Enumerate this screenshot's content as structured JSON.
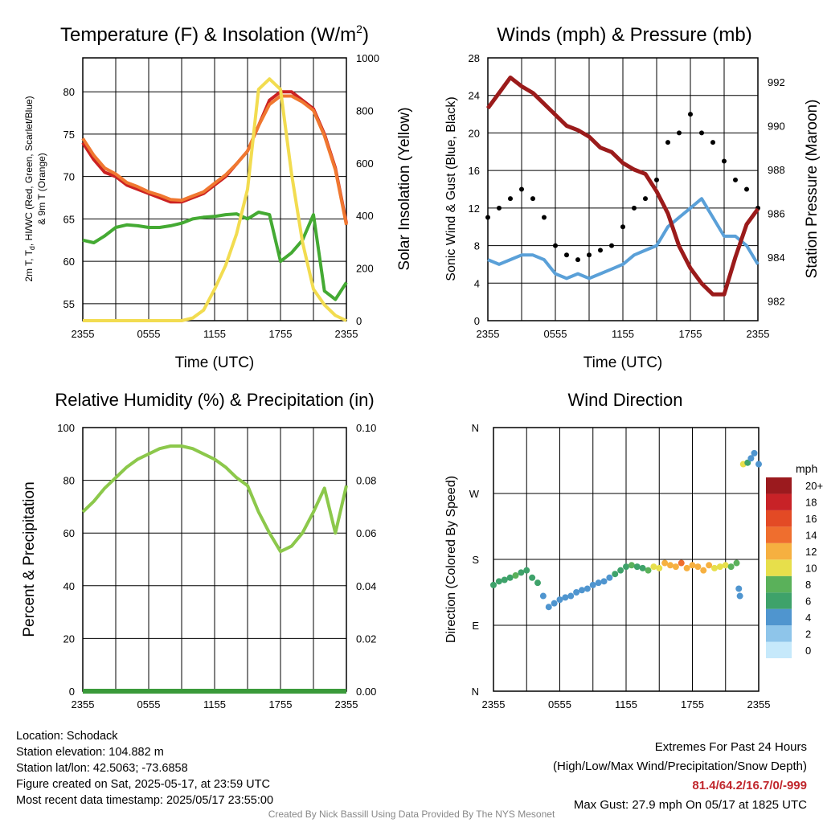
{
  "panels": {
    "temperature": {
      "title": "Temperature (F) & Insolation (W/m",
      "title_sup": "2",
      "title_end": ")",
      "ylabel_left_1": "2m T, T",
      "ylabel_left_sub": "d",
      "ylabel_left_2": ", HI/WC (Red, Green, Scarlet/Blue)",
      "ylabel_left_3": "& 9m T (Orange)",
      "ylabel_right": "Solar Insolation (Yellow)",
      "xlabel": "Time (UTC)"
    },
    "winds": {
      "title": "Winds (mph) & Pressure (mb)",
      "ylabel_left": "Sonic Wind & Gust (Blue, Black)",
      "ylabel_right": "Station Pressure (Maroon)",
      "xlabel": "Time (UTC)"
    },
    "humidity": {
      "title": "Relative Humidity (%) & Precipitation (in)",
      "ylabel_left": "Percent & Precipitation"
    },
    "direction": {
      "title": "Wind Direction",
      "ylabel_left": "Direction (Colored By Speed)",
      "colorbar_title": "mph"
    }
  },
  "info": {
    "location": "Location: Schodack",
    "elevation": "Station elevation: 104.882 m",
    "latlon": "Station lat/lon: 42.5063; -73.6858",
    "created": "Figure created on Sat, 2025-05-17, at 23:59 UTC",
    "recent": "Most recent data timestamp: 2025/05/17 23:55:00"
  },
  "extremes": {
    "title": "Extremes For Past 24 Hours",
    "subtitle": "(High/Low/Max Wind/Precipitation/Snow Depth)",
    "values": "81.4/64.2/16.7/0/-999",
    "gust": "Max Gust: 27.9 mph On 05/17 at 1825 UTC"
  },
  "credit": "Created By Nick Bassill Using Data Provided By The NYS Mesonet",
  "colors": {
    "temp": "#cc2222",
    "temp9m": "#f07830",
    "dewpoint": "#44aa33",
    "solar": "#f2dc50",
    "wind": "#5aa0d8",
    "gust": "#000000",
    "pressure": "#9b1b1b",
    "rh": "#8cc84b",
    "precip": "#3a9a3a"
  },
  "chart_data": [
    {
      "type": "line",
      "panel": "temperature",
      "x_ticks": [
        "2355",
        "0555",
        "1155",
        "1755",
        "2355"
      ],
      "ylim": [
        53,
        84
      ],
      "y_ticks": [
        55,
        60,
        65,
        70,
        75,
        80
      ],
      "y2lim": [
        0,
        1000
      ],
      "y2_ticks": [
        0,
        200,
        400,
        600,
        800,
        1000
      ],
      "x_hours": [
        0,
        1,
        2,
        3,
        4,
        5,
        6,
        7,
        8,
        9,
        10,
        11,
        12,
        13,
        14,
        15,
        16,
        17,
        18,
        19,
        20,
        21,
        22,
        23,
        24
      ],
      "series": [
        {
          "key": "temp",
          "axis": "left",
          "values": [
            74,
            72,
            70.5,
            70,
            69,
            68.5,
            68,
            67.5,
            67,
            67,
            67.5,
            68,
            69,
            70,
            71.5,
            73,
            76,
            79,
            80,
            80,
            79,
            78,
            75,
            71,
            64.5
          ]
        },
        {
          "key": "temp9m",
          "axis": "left",
          "values": [
            74.5,
            72.5,
            71,
            70.3,
            69.3,
            68.8,
            68.2,
            67.8,
            67.3,
            67.2,
            67.7,
            68.2,
            69.2,
            70.2,
            71.5,
            73,
            76,
            78.5,
            79.5,
            79.5,
            78.8,
            77.8,
            74.8,
            70.8,
            64.3
          ]
        },
        {
          "key": "dewpoint",
          "axis": "left",
          "values": [
            62.5,
            62.2,
            63,
            64,
            64.3,
            64.2,
            64,
            64,
            64.2,
            64.5,
            65,
            65.2,
            65.3,
            65.5,
            65.6,
            65,
            65.8,
            65.5,
            60,
            61,
            62.5,
            65.5,
            56.5,
            55.5,
            57.5
          ]
        },
        {
          "key": "solar",
          "axis": "right",
          "values": [
            0,
            0,
            0,
            0,
            0,
            0,
            0,
            0,
            0,
            0,
            10,
            40,
            120,
            210,
            330,
            500,
            880,
            920,
            880,
            560,
            300,
            120,
            60,
            20,
            0
          ]
        }
      ]
    },
    {
      "type": "line",
      "panel": "winds",
      "x_ticks": [
        "2355",
        "0555",
        "1155",
        "1755",
        "2355"
      ],
      "ylim": [
        0,
        28
      ],
      "y_ticks": [
        0,
        4,
        8,
        12,
        16,
        20,
        24,
        28
      ],
      "y2lim": [
        981.1,
        993.1
      ],
      "y2_ticks": [
        982,
        984,
        986,
        988,
        990,
        992
      ],
      "x_hours": [
        0,
        1,
        2,
        3,
        4,
        5,
        6,
        7,
        8,
        9,
        10,
        11,
        12,
        13,
        14,
        15,
        16,
        17,
        18,
        19,
        20,
        21,
        22,
        23,
        24
      ],
      "series": [
        {
          "key": "wind",
          "axis": "left",
          "values": [
            6.5,
            6,
            6.5,
            7,
            7,
            6.5,
            5,
            4.5,
            5,
            4.5,
            5,
            5.5,
            6,
            7,
            7.5,
            8,
            10,
            11,
            12,
            13,
            11,
            9,
            9,
            8,
            6
          ]
        },
        {
          "key": "gust",
          "axis": "left",
          "mark": "scatter",
          "values": [
            11,
            12,
            13,
            14,
            13,
            11,
            8,
            7,
            6.5,
            7,
            7.5,
            8,
            10,
            12,
            13,
            15,
            19,
            20,
            22,
            20,
            19,
            17,
            15,
            14,
            12
          ]
        },
        {
          "key": "pressure",
          "axis": "right",
          "values": [
            990.8,
            991.5,
            992.2,
            991.8,
            991.5,
            991,
            990.5,
            990,
            989.8,
            989.5,
            989,
            988.8,
            988.3,
            988,
            987.8,
            987,
            986,
            984.5,
            983.5,
            982.8,
            982.3,
            982.3,
            984,
            985.5,
            986.2
          ]
        }
      ]
    },
    {
      "type": "line",
      "panel": "humidity",
      "x_ticks": [
        "2355",
        "0555",
        "1155",
        "1755",
        "2355"
      ],
      "ylim": [
        0,
        100
      ],
      "y_ticks": [
        0,
        20,
        40,
        60,
        80,
        100
      ],
      "y2lim": [
        0,
        0.1
      ],
      "y2_ticks": [
        "0.00",
        "0.02",
        "0.04",
        "0.06",
        "0.08",
        "0.10"
      ],
      "x_hours": [
        0,
        1,
        2,
        3,
        4,
        5,
        6,
        7,
        8,
        9,
        10,
        11,
        12,
        13,
        14,
        15,
        16,
        17,
        18,
        19,
        20,
        21,
        22,
        23,
        24
      ],
      "series": [
        {
          "key": "rh",
          "axis": "left",
          "values": [
            68,
            72,
            77,
            81,
            85,
            88,
            90,
            92,
            93,
            93,
            92,
            90,
            88,
            85,
            81,
            78,
            68,
            60,
            53,
            55,
            60,
            68,
            77,
            60,
            78
          ]
        },
        {
          "key": "precip",
          "axis": "right",
          "values": [
            0,
            0,
            0,
            0,
            0,
            0,
            0,
            0,
            0,
            0,
            0,
            0,
            0,
            0,
            0,
            0,
            0,
            0,
            0,
            0,
            0,
            0,
            0,
            0,
            0
          ]
        }
      ]
    },
    {
      "type": "scatter",
      "panel": "direction",
      "x_ticks": [
        "2355",
        "0555",
        "1155",
        "1755",
        "2355"
      ],
      "y_ticks": [
        "N",
        "E",
        "S",
        "W",
        "N"
      ],
      "ylim": [
        0,
        360
      ],
      "colorbar_levels": [
        "0",
        "2",
        "4",
        "6",
        "8",
        "10",
        "12",
        "14",
        "16",
        "18",
        "20+"
      ],
      "colorbar_colors": [
        "#c6e9fb",
        "#8ec5ea",
        "#4f95cf",
        "#3ea26a",
        "#5ab15a",
        "#e7df4b",
        "#f6b040",
        "#ef6e2e",
        "#e34a25",
        "#c82227",
        "#9b1a1e"
      ],
      "points": [
        {
          "x": 0,
          "dir": 145,
          "speed": 7
        },
        {
          "x": 0.5,
          "dir": 150,
          "speed": 6
        },
        {
          "x": 1,
          "dir": 152,
          "speed": 7
        },
        {
          "x": 1.5,
          "dir": 155,
          "speed": 7
        },
        {
          "x": 2,
          "dir": 158,
          "speed": 8
        },
        {
          "x": 2.5,
          "dir": 162,
          "speed": 7
        },
        {
          "x": 3,
          "dir": 165,
          "speed": 7
        },
        {
          "x": 3.5,
          "dir": 155,
          "speed": 6
        },
        {
          "x": 4,
          "dir": 148,
          "speed": 6
        },
        {
          "x": 4.5,
          "dir": 130,
          "speed": 4
        },
        {
          "x": 5,
          "dir": 115,
          "speed": 4
        },
        {
          "x": 5.5,
          "dir": 120,
          "speed": 4
        },
        {
          "x": 6,
          "dir": 125,
          "speed": 4
        },
        {
          "x": 6.5,
          "dir": 128,
          "speed": 4
        },
        {
          "x": 7,
          "dir": 130,
          "speed": 4
        },
        {
          "x": 7.5,
          "dir": 135,
          "speed": 4
        },
        {
          "x": 8,
          "dir": 138,
          "speed": 4
        },
        {
          "x": 8.5,
          "dir": 140,
          "speed": 4
        },
        {
          "x": 9,
          "dir": 145,
          "speed": 4
        },
        {
          "x": 9.5,
          "dir": 148,
          "speed": 5
        },
        {
          "x": 10,
          "dir": 150,
          "speed": 5
        },
        {
          "x": 10.5,
          "dir": 155,
          "speed": 5
        },
        {
          "x": 11,
          "dir": 160,
          "speed": 6
        },
        {
          "x": 11.5,
          "dir": 165,
          "speed": 6
        },
        {
          "x": 12,
          "dir": 170,
          "speed": 7
        },
        {
          "x": 12.5,
          "dir": 172,
          "speed": 8
        },
        {
          "x": 13,
          "dir": 170,
          "speed": 7
        },
        {
          "x": 13.5,
          "dir": 168,
          "speed": 7
        },
        {
          "x": 14,
          "dir": 165,
          "speed": 9
        },
        {
          "x": 14.5,
          "dir": 170,
          "speed": 10
        },
        {
          "x": 15,
          "dir": 168,
          "speed": 11
        },
        {
          "x": 15.5,
          "dir": 175,
          "speed": 12
        },
        {
          "x": 16,
          "dir": 172,
          "speed": 13
        },
        {
          "x": 16.5,
          "dir": 170,
          "speed": 13
        },
        {
          "x": 17,
          "dir": 175,
          "speed": 14
        },
        {
          "x": 17.5,
          "dir": 168,
          "speed": 13
        },
        {
          "x": 18,
          "dir": 172,
          "speed": 12
        },
        {
          "x": 18.5,
          "dir": 170,
          "speed": 13
        },
        {
          "x": 19,
          "dir": 165,
          "speed": 12
        },
        {
          "x": 19.5,
          "dir": 172,
          "speed": 12
        },
        {
          "x": 20,
          "dir": 168,
          "speed": 11
        },
        {
          "x": 20.5,
          "dir": 170,
          "speed": 11
        },
        {
          "x": 21,
          "dir": 172,
          "speed": 10
        },
        {
          "x": 21.5,
          "dir": 170,
          "speed": 9
        },
        {
          "x": 22,
          "dir": 175,
          "speed": 8
        },
        {
          "x": 22.2,
          "dir": 140,
          "speed": 4
        },
        {
          "x": 22.3,
          "dir": 130,
          "speed": 4
        },
        {
          "x": 22.6,
          "dir": 310,
          "speed": 10
        },
        {
          "x": 23,
          "dir": 312,
          "speed": 6
        },
        {
          "x": 23.3,
          "dir": 318,
          "speed": 4
        },
        {
          "x": 23.6,
          "dir": 325,
          "speed": 4
        },
        {
          "x": 24,
          "dir": 310,
          "speed": 4
        }
      ]
    }
  ]
}
